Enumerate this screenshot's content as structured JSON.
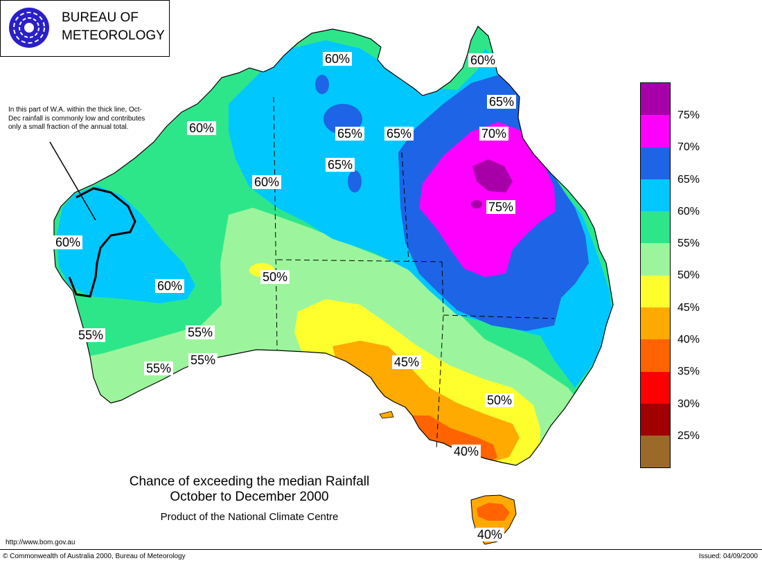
{
  "header": {
    "org_line1": "BUREAU OF",
    "org_line2": "METEOROLOGY"
  },
  "note": "In this part of W.A. within the thick line, Oct-Dec rainfall is commonly low and contributes only a small fraction of the annual total.",
  "legend": [
    {
      "label": "75%",
      "color": "#a800a8"
    },
    {
      "label": "70%",
      "color": "#ff00ff"
    },
    {
      "label": "65%",
      "color": "#1e64e6"
    },
    {
      "label": "60%",
      "color": "#00c8ff"
    },
    {
      "label": "55%",
      "color": "#2ee68a"
    },
    {
      "label": "50%",
      "color": "#9cf59c"
    },
    {
      "label": "45%",
      "color": "#ffff2e"
    },
    {
      "label": "40%",
      "color": "#ffaa00"
    },
    {
      "label": "35%",
      "color": "#ff6400"
    },
    {
      "label": "30%",
      "color": "#ff0000"
    },
    {
      "label": "25%",
      "color": "#a00000"
    },
    {
      "label": "",
      "color": "#9c6a28"
    }
  ],
  "map_labels": [
    "60%",
    "60%",
    "65%",
    "65%",
    "65%",
    "70%",
    "65%",
    "60%",
    "75%",
    "60%",
    "60%",
    "50%",
    "60%",
    "55%",
    "55%",
    "55%",
    "55%",
    "45%",
    "50%",
    "40%",
    "40%"
  ],
  "caption": {
    "line1": "Chance of exceeding the median Rainfall",
    "line2": "October to December 2000",
    "line3": "Product of the National Climate Centre"
  },
  "footer": {
    "url": "http://www.bom.gov.au",
    "copyright": "© Commonwealth of Australia 2000, Bureau of Meteorology",
    "issued": "Issued: 04/09/2000"
  }
}
